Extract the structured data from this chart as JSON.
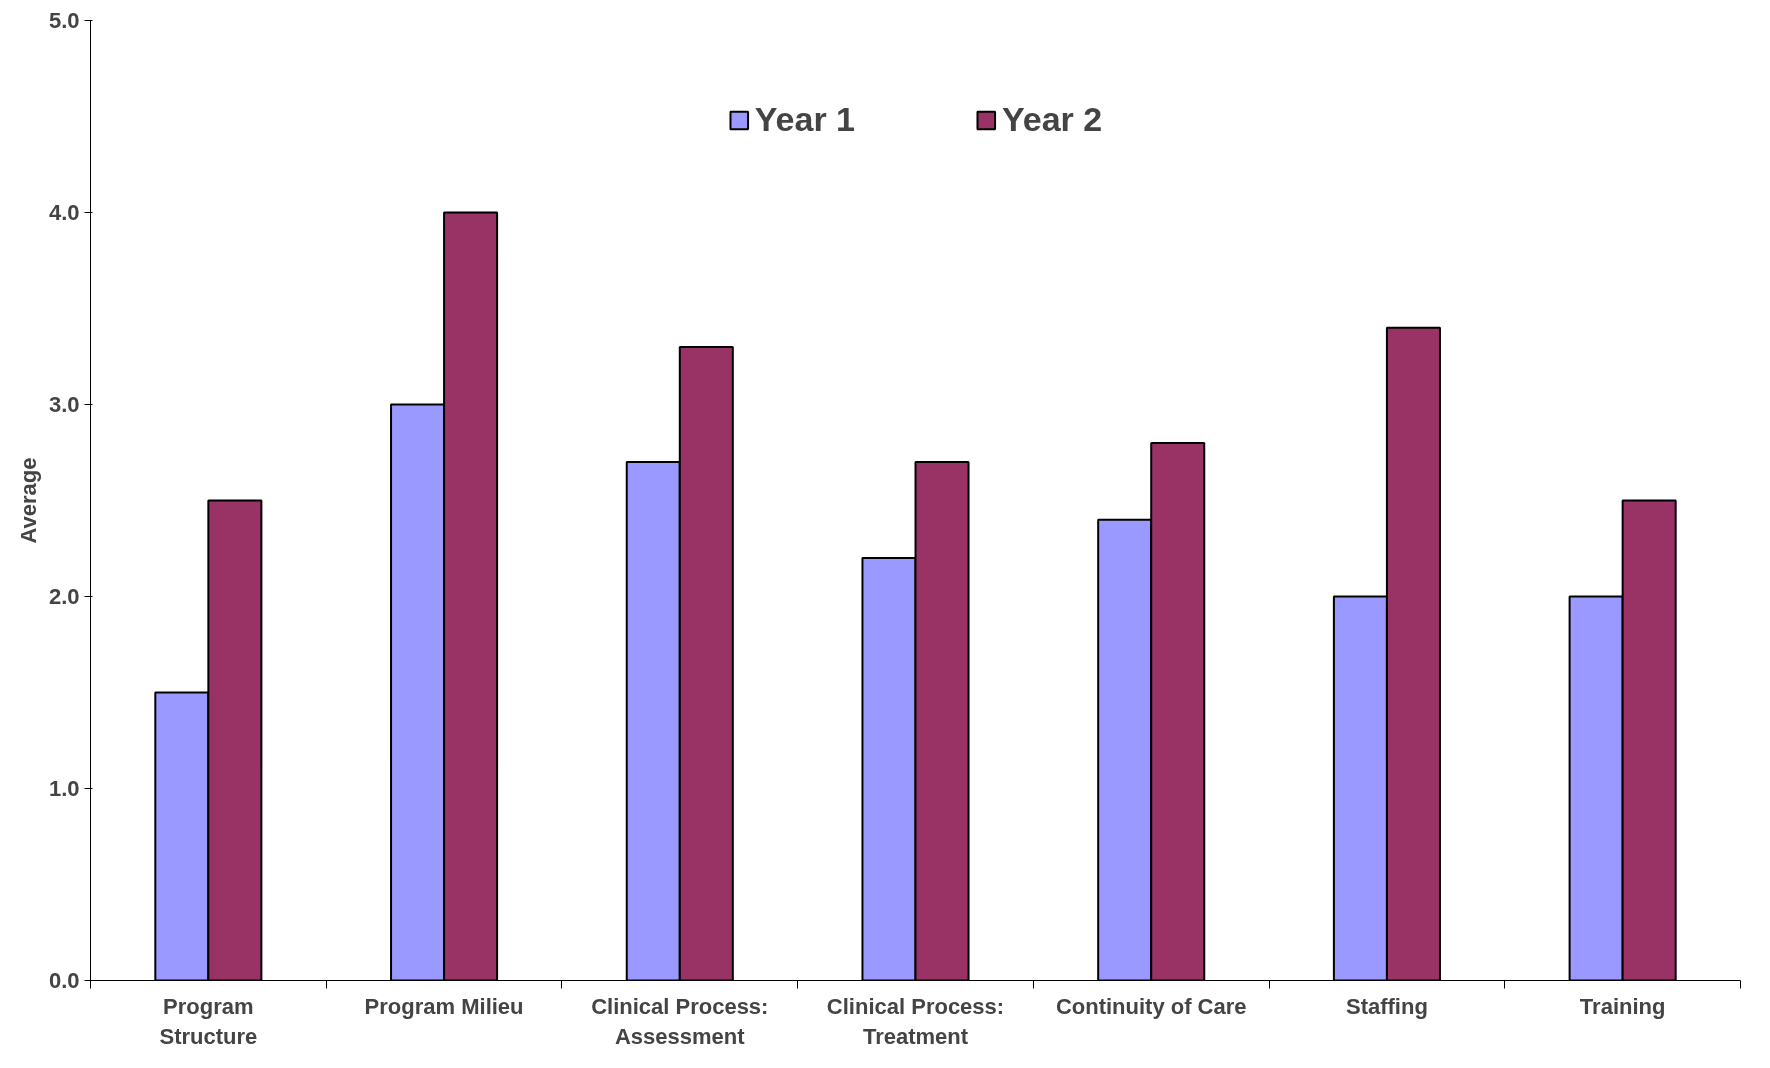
{
  "chart_data": {
    "type": "bar",
    "ylabel": "Average",
    "categories": [
      "Program\nStructure",
      "Program Milieu",
      "Clinical Process:\nAssessment",
      "Clinical Process:\nTreatment",
      "Continuity of Care",
      "Staffing",
      "Training"
    ],
    "series": [
      {
        "name": "Year 1",
        "color": "#9999ff",
        "values": [
          1.5,
          3.0,
          2.7,
          2.2,
          2.4,
          2.0,
          2.0
        ]
      },
      {
        "name": "Year 2",
        "color": "#993366",
        "values": [
          2.5,
          4.0,
          3.3,
          2.7,
          2.8,
          3.4,
          2.5
        ]
      }
    ],
    "ylim": [
      0,
      5
    ],
    "yticks": [
      {
        "value": 0,
        "label": "0.0"
      },
      {
        "value": 1,
        "label": "1.0"
      },
      {
        "value": 2,
        "label": "2.0"
      },
      {
        "value": 3,
        "label": "3.0"
      },
      {
        "value": 4,
        "label": "4.0"
      },
      {
        "value": 5,
        "label": "5.0"
      }
    ],
    "grid": false,
    "legend": "top"
  }
}
